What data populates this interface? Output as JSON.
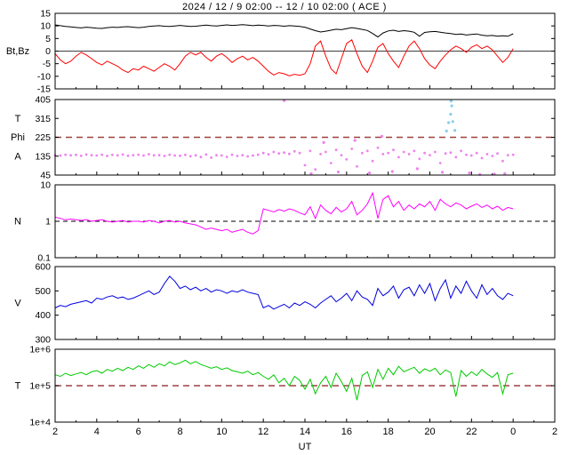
{
  "chart_data": {
    "type": "line",
    "title": "2024 / 12 / 9  02:00 -- 12 / 10  02:00 ( ACE )",
    "xlabel": "UT",
    "x_hours_start": 2,
    "x_hours_end": 26,
    "x_tick_hours": [
      2,
      4,
      6,
      8,
      10,
      12,
      14,
      16,
      18,
      20,
      22,
      24,
      26
    ],
    "x_tick_labels": [
      "2",
      "4",
      "6",
      "8",
      "10",
      "12",
      "14",
      "16",
      "18",
      "20",
      "22",
      "0",
      "2"
    ],
    "sample_start_hour": 2,
    "sample_step_hours": 0.25,
    "panels": [
      {
        "name": "imf",
        "left_labels": [
          {
            "text": "Bt,Bz",
            "at": 0
          }
        ],
        "scale": "linear",
        "ylim": [
          -15,
          15
        ],
        "yticks": [
          -15,
          -10,
          -5,
          0,
          5,
          10,
          15
        ],
        "ytick_labels": [
          "-15",
          "-10",
          "-5",
          "0",
          "5",
          "10",
          "15"
        ],
        "zero_line": true,
        "series": [
          {
            "name": "Bt",
            "type": "line",
            "color": "#000000",
            "values": [
              10.4,
              10.1,
              9.8,
              9.6,
              9.4,
              9.2,
              9.5,
              9.3,
              9.1,
              9.0,
              9.3,
              9.5,
              9.4,
              9.6,
              9.7,
              9.5,
              9.3,
              9.5,
              9.8,
              10.0,
              10.1,
              9.9,
              9.8,
              10.0,
              10.2,
              10.0,
              9.8,
              9.9,
              10.1,
              10.3,
              10.1,
              10.0,
              10.2,
              10.4,
              10.2,
              10.3,
              10.5,
              10.3,
              10.1,
              10.3,
              10.2,
              10.0,
              10.2,
              10.1,
              9.9,
              10.1,
              10.0,
              9.8,
              9.5,
              8.8,
              8.1,
              7.6,
              7.9,
              8.3,
              8.7,
              8.5,
              8.9,
              9.3,
              9.0,
              8.6,
              8.2,
              7.0,
              5.6,
              7.2,
              8.0,
              8.3,
              7.8,
              8.1,
              7.9,
              7.5,
              5.9,
              7.4,
              7.7,
              7.8,
              7.5,
              7.2,
              7.0,
              6.6,
              6.8,
              6.4,
              6.6,
              6.8,
              6.3,
              6.1,
              6.2,
              5.9,
              6.1,
              5.9,
              6.9
            ]
          },
          {
            "name": "Bz",
            "type": "line",
            "color": "#ff0000",
            "values": [
              -1.0,
              -3.5,
              -5.0,
              -4.0,
              -2.0,
              -0.5,
              -1.5,
              -3.0,
              -4.5,
              -5.5,
              -4.0,
              -5.0,
              -6.0,
              -7.5,
              -8.5,
              -7.0,
              -7.5,
              -6.0,
              -7.0,
              -8.0,
              -6.5,
              -5.0,
              -6.0,
              -7.5,
              -5.0,
              -2.0,
              -0.5,
              -1.5,
              -0.5,
              -2.5,
              -4.0,
              -2.0,
              -1.0,
              -2.5,
              -4.5,
              -3.0,
              -2.0,
              -3.5,
              -2.5,
              -4.0,
              -6.0,
              -8.0,
              -9.5,
              -8.5,
              -9.0,
              -9.8,
              -9.2,
              -9.6,
              -9.0,
              -5.0,
              2.0,
              4.0,
              -2.0,
              -7.0,
              -9.0,
              -3.0,
              3.0,
              4.5,
              -1.0,
              -6.0,
              -8.5,
              -4.0,
              1.5,
              3.0,
              -1.0,
              -4.0,
              -6.5,
              -2.0,
              2.0,
              4.0,
              1.0,
              -3.0,
              -5.5,
              -7.0,
              -4.0,
              -1.5,
              0.5,
              2.0,
              1.0,
              -0.5,
              1.5,
              2.5,
              1.0,
              2.0,
              0.5,
              -2.0,
              -4.5,
              -2.5,
              1.0
            ]
          }
        ]
      },
      {
        "name": "phi",
        "left_labels": [
          {
            "text": "T",
            "at": 315
          },
          {
            "text": "Phi",
            "at": 225
          },
          {
            "text": "A",
            "at": 135
          }
        ],
        "scale": "linear",
        "ylim": [
          45,
          405
        ],
        "yticks": [
          45,
          135,
          225,
          315,
          405
        ],
        "ytick_labels": [
          "45",
          "135",
          "225",
          "315",
          "405"
        ],
        "ref_line": {
          "value": 225,
          "color": "#a04040"
        },
        "series": [
          {
            "name": "Phi",
            "type": "scatter",
            "color": "#ee82ee",
            "values": [
              140,
              138,
              142,
              139,
              141,
              137,
              143,
              140,
              138,
              142,
              136,
              141,
              139,
              143,
              137,
              140,
              142,
              138,
              144,
              139,
              140,
              136,
              142,
              138,
              137,
              141,
              135,
              139,
              131,
              143,
              128,
              140,
              138,
              132,
              142,
              136,
              140,
              134,
              138,
              142,
              150,
              144,
              155,
              148,
              152,
              146,
              158,
              150,
              92,
              160,
              72,
              145,
              155,
              102,
              165,
              140,
              120,
              170,
              86,
              150,
              160,
              112,
              175,
              145,
              150,
              165,
              130,
              155,
              145,
              160,
              122,
              150,
              140,
              155,
              102,
              148,
              152,
              130,
              160,
              142,
              138,
              150,
              126,
              145,
              136,
              148,
              112,
              140,
              142
            ]
          },
          {
            "name": "Phi-extra",
            "type": "points",
            "color": "#ee82ee",
            "points": [
              [
                13.0,
                400
              ],
              [
                14.3,
                52
              ],
              [
                14.9,
                200
              ],
              [
                15.6,
                60
              ],
              [
                16.4,
                210
              ],
              [
                17.1,
                55
              ],
              [
                17.7,
                230
              ],
              [
                18.2,
                62
              ],
              [
                19.4,
                75
              ],
              [
                20.6,
                58
              ],
              [
                21.9,
                55
              ],
              [
                22.4,
                48
              ],
              [
                23.1,
                50
              ],
              [
                23.6,
                52
              ]
            ]
          },
          {
            "name": "secondary",
            "type": "points",
            "color": "#87ceeb",
            "points": [
              [
                20.8,
                255
              ],
              [
                20.9,
                295
              ],
              [
                21.0,
                335
              ],
              [
                21.02,
                398
              ],
              [
                21.05,
                375
              ],
              [
                21.1,
                300
              ],
              [
                21.2,
                258
              ]
            ]
          }
        ]
      },
      {
        "name": "density",
        "left_labels": [
          {
            "text": "N",
            "at": 1
          }
        ],
        "scale": "log",
        "ylim": [
          0.1,
          10
        ],
        "yticks": [
          0.1,
          1,
          10
        ],
        "ytick_labels": [
          "0.1",
          "1",
          "10"
        ],
        "ref_line": {
          "value": 1,
          "color": "#000000"
        },
        "series": [
          {
            "name": "N",
            "type": "line",
            "color": "#ff00ff",
            "values": [
              1.3,
              1.2,
              1.1,
              1.15,
              1.1,
              1.05,
              1.1,
              1.0,
              1.05,
              1.1,
              1.0,
              0.95,
              1.0,
              1.05,
              0.95,
              1.0,
              1.0,
              0.95,
              1.05,
              1.0,
              0.9,
              1.0,
              1.05,
              0.95,
              1.0,
              0.9,
              0.85,
              0.8,
              0.7,
              0.6,
              0.65,
              0.6,
              0.55,
              0.6,
              0.5,
              0.55,
              0.6,
              0.5,
              0.45,
              0.55,
              2.2,
              2.0,
              1.8,
              2.1,
              1.9,
              2.2,
              2.0,
              1.7,
              1.5,
              2.5,
              1.2,
              2.8,
              2.0,
              1.6,
              2.4,
              1.8,
              2.2,
              3.5,
              1.5,
              2.0,
              3.0,
              6.0,
              1.2,
              4.0,
              5.0,
              2.5,
              3.5,
              2.0,
              2.8,
              2.2,
              3.0,
              2.5,
              3.5,
              2.0,
              4.0,
              3.0,
              2.5,
              3.2,
              2.8,
              2.2,
              2.6,
              3.0,
              2.4,
              2.8,
              2.2,
              2.6,
              2.0,
              2.4,
              2.2
            ]
          }
        ]
      },
      {
        "name": "speed",
        "left_labels": [
          {
            "text": "V",
            "at": 450
          }
        ],
        "scale": "linear",
        "ylim": [
          300,
          600
        ],
        "yticks": [
          300,
          400,
          500,
          600
        ],
        "ytick_labels": [
          "300",
          "400",
          "500",
          "600"
        ],
        "series": [
          {
            "name": "V",
            "type": "line",
            "color": "#0000dd",
            "values": [
              430,
              440,
              435,
              445,
              450,
              455,
              460,
              450,
              470,
              465,
              475,
              480,
              470,
              475,
              465,
              470,
              480,
              490,
              500,
              485,
              495,
              530,
              560,
              540,
              510,
              520,
              505,
              515,
              500,
              510,
              495,
              505,
              500,
              490,
              500,
              495,
              505,
              495,
              490,
              485,
              430,
              440,
              425,
              435,
              445,
              430,
              450,
              440,
              455,
              445,
              430,
              450,
              465,
              480,
              455,
              470,
              490,
              460,
              500,
              475,
              465,
              440,
              510,
              480,
              495,
              520,
              470,
              505,
              515,
              480,
              525,
              490,
              530,
              460,
              510,
              545,
              470,
              520,
              490,
              540,
              500,
              470,
              525,
              485,
              510,
              480,
              465,
              490,
              480
            ]
          }
        ]
      },
      {
        "name": "temperature",
        "left_labels": [
          {
            "text": "T",
            "at": 100000
          }
        ],
        "scale": "log",
        "ylim": [
          10000,
          1000000
        ],
        "yticks": [
          10000,
          100000,
          1000000
        ],
        "ytick_labels": [
          "1e+4",
          "1e+5",
          "1e+6"
        ],
        "ref_line": {
          "value": 100000,
          "color": "#a04040"
        },
        "series": [
          {
            "name": "T",
            "type": "line",
            "color": "#00cc00",
            "values": [
              200000,
              180000,
              220000,
              190000,
              210000,
              230000,
              200000,
              240000,
              260000,
              220000,
              280000,
              250000,
              300000,
              260000,
              320000,
              280000,
              350000,
              300000,
              380000,
              320000,
              400000,
              350000,
              450000,
              380000,
              420000,
              500000,
              400000,
              460000,
              380000,
              340000,
              300000,
              330000,
              280000,
              310000,
              260000,
              240000,
              220000,
              250000,
              200000,
              230000,
              180000,
              150000,
              200000,
              120000,
              160000,
              100000,
              180000,
              140000,
              80000,
              150000,
              60000,
              120000,
              180000,
              90000,
              220000,
              130000,
              70000,
              160000,
              40000,
              190000,
              240000,
              90000,
              280000,
              150000,
              300000,
              200000,
              340000,
              240000,
              280000,
              320000,
              220000,
              290000,
              250000,
              300000,
              200000,
              270000,
              230000,
              50000,
              260000,
              180000,
              240000,
              190000,
              280000,
              210000,
              170000,
              230000,
              60000,
              200000,
              220000
            ]
          }
        ]
      }
    ]
  }
}
